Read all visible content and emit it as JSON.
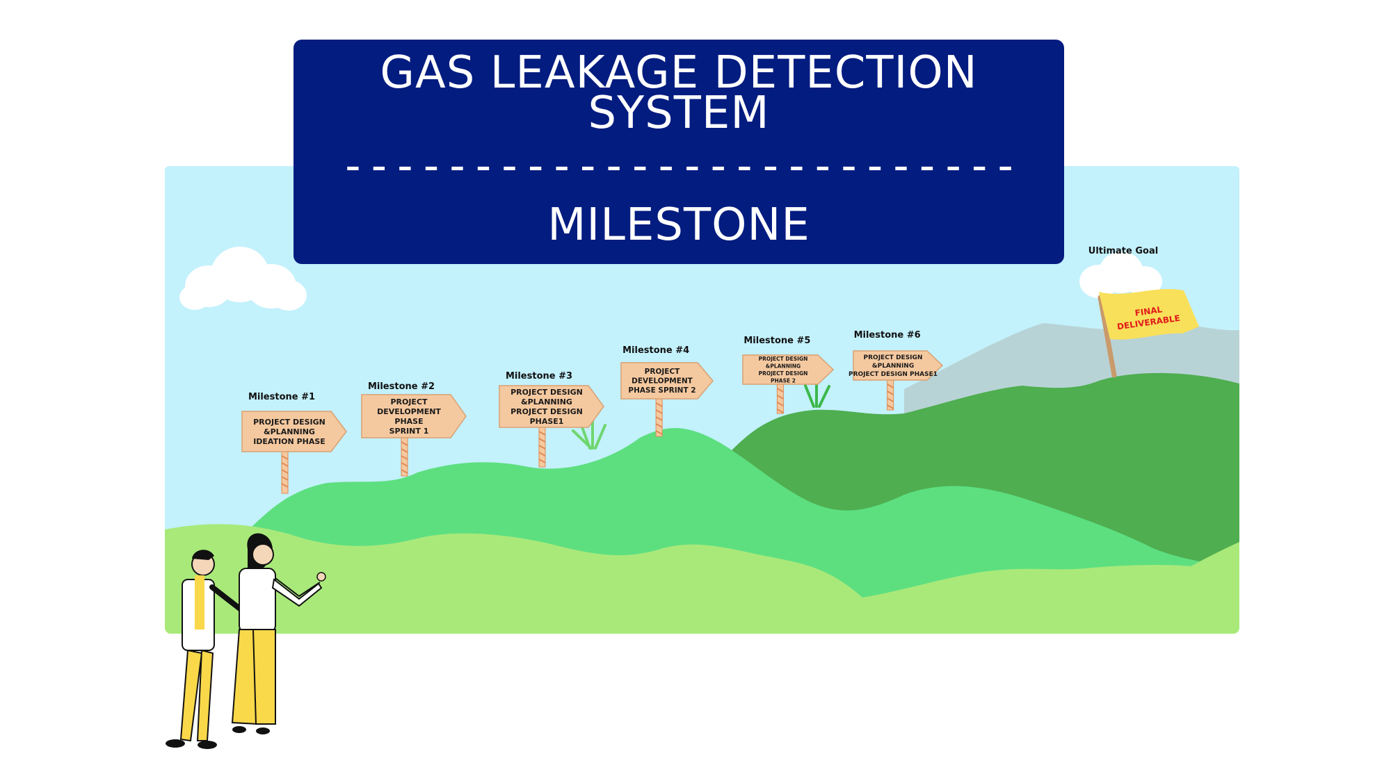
{
  "title": {
    "line1": "GAS LEAKAGE DETECTION",
    "line2": "SYSTEM",
    "divider": "--------------------------",
    "subtitle": "MILESTONE"
  },
  "milestones": [
    {
      "label": "Milestone #1",
      "sign_lines": [
        "PROJECT DESIGN",
        "&PLANNING",
        "IDEATION PHASE"
      ]
    },
    {
      "label": "Milestone #2",
      "sign_lines": [
        "PROJECT",
        "DEVELOPMENT",
        "PHASE",
        "SPRINT 1"
      ]
    },
    {
      "label": "Milestone #3",
      "sign_lines": [
        "PROJECT DESIGN",
        "&PLANNING",
        "PROJECT DESIGN",
        "PHASE1"
      ]
    },
    {
      "label": "Milestone #4",
      "sign_lines": [
        "PROJECT",
        "DEVELOPMENT",
        "PHASE SPRINT 2"
      ]
    },
    {
      "label": "Milestone #5",
      "sign_lines": [
        "PROJECT DESIGN",
        "&PLANNING",
        "PROJECT DESIGN",
        "PHASE 2"
      ]
    },
    {
      "label": "Milestone #6",
      "sign_lines": [
        "PROJECT DESIGN",
        "&PLANNING",
        "PROJECT DESIGN PHASE1"
      ]
    }
  ],
  "goal": {
    "label": "Ultimate Goal",
    "flag_lines": [
      "FINAL",
      "DELIVERABLE"
    ]
  },
  "colors": {
    "title_bg": "#031c80",
    "sky": "#c3f1fc",
    "grass_light": "#a9e97a",
    "hill_mid": "#5ddf80",
    "hill_dark": "#4fae50",
    "mountain": "#b8d3d6",
    "sign": "#f5c9a0",
    "flag": "#f9e05a"
  }
}
